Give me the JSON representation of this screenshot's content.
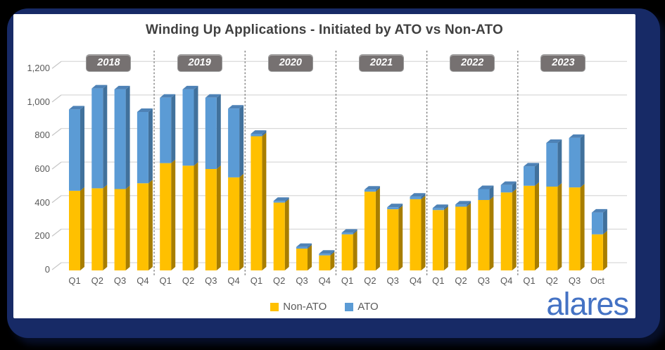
{
  "title": "Winding Up Applications - Initiated by ATO vs Non-ATO",
  "brand": {
    "logo_text": "alares",
    "logo_color": "#4472C4"
  },
  "legend": {
    "items": [
      {
        "label": "Non-ATO",
        "color": "#FFC000"
      },
      {
        "label": "ATO",
        "color": "#5B9BD5"
      }
    ]
  },
  "y_axis": {
    "min": 0,
    "max": 1200,
    "step": 200,
    "tick_labels": [
      "0",
      "200",
      "400",
      "600",
      "800",
      "1,000",
      "1,200"
    ]
  },
  "colors": {
    "non_ato_front": "#FFC000",
    "non_ato_side": "#A87E00",
    "ato_front": "#5B9BD5",
    "ato_side": "#41719C",
    "ato_top": "#4E82B6",
    "gridline": "#D9D9D9",
    "depth_tick": "#C6C6C6",
    "separator": "#6E6E6E",
    "chip_bg": "#767171",
    "chip_text": "#FFFFFF",
    "axis_text": "#595959",
    "title_text": "#404040",
    "card_bg": "#172A66",
    "page_bg": "#000000"
  },
  "chart_data": {
    "type": "bar",
    "stacked": true,
    "title": "Winding Up Applications - Initiated by ATO vs Non-ATO",
    "xlabel": "",
    "ylabel": "",
    "ylim": [
      0,
      1200
    ],
    "grid": true,
    "legend_position": "bottom",
    "categories": [
      "2018 Q1",
      "2018 Q2",
      "2018 Q3",
      "2018 Q4",
      "2019 Q1",
      "2019 Q2",
      "2019 Q3",
      "2019 Q4",
      "2020 Q1",
      "2020 Q2",
      "2020 Q3",
      "2020 Q4",
      "2021 Q1",
      "2021 Q2",
      "2021 Q3",
      "2021 Q4",
      "2022 Q1",
      "2022 Q2",
      "2022 Q3",
      "2022 Q4",
      "2023 Q1",
      "2023 Q2",
      "2023 Q3",
      "2023 Oct"
    ],
    "series": [
      {
        "name": "Non-ATO",
        "values": [
          475,
          490,
          485,
          520,
          640,
          625,
          605,
          555,
          800,
          405,
          130,
          90,
          215,
          470,
          365,
          425,
          360,
          380,
          420,
          465,
          505,
          500,
          495,
          215
        ]
      },
      {
        "name": "ATO",
        "values": [
          485,
          595,
          595,
          425,
          390,
          455,
          425,
          410,
          15,
          10,
          10,
          10,
          10,
          12,
          12,
          15,
          12,
          13,
          65,
          45,
          115,
          260,
          295,
          130
        ]
      }
    ],
    "groups": [
      {
        "year": "2018",
        "points": [
          {
            "label": "Q1",
            "non_ato": 475,
            "ato": 485
          },
          {
            "label": "Q2",
            "non_ato": 490,
            "ato": 595
          },
          {
            "label": "Q3",
            "non_ato": 485,
            "ato": 595
          },
          {
            "label": "Q4",
            "non_ato": 520,
            "ato": 425
          }
        ]
      },
      {
        "year": "2019",
        "points": [
          {
            "label": "Q1",
            "non_ato": 640,
            "ato": 390
          },
          {
            "label": "Q2",
            "non_ato": 625,
            "ato": 455
          },
          {
            "label": "Q3",
            "non_ato": 605,
            "ato": 425
          },
          {
            "label": "Q4",
            "non_ato": 555,
            "ato": 410
          }
        ]
      },
      {
        "year": "2020",
        "points": [
          {
            "label": "Q1",
            "non_ato": 800,
            "ato": 15
          },
          {
            "label": "Q2",
            "non_ato": 405,
            "ato": 10
          },
          {
            "label": "Q3",
            "non_ato": 130,
            "ato": 10
          },
          {
            "label": "Q4",
            "non_ato": 90,
            "ato": 10
          }
        ]
      },
      {
        "year": "2021",
        "points": [
          {
            "label": "Q1",
            "non_ato": 215,
            "ato": 10
          },
          {
            "label": "Q2",
            "non_ato": 470,
            "ato": 12
          },
          {
            "label": "Q3",
            "non_ato": 365,
            "ato": 12
          },
          {
            "label": "Q4",
            "non_ato": 425,
            "ato": 15
          }
        ]
      },
      {
        "year": "2022",
        "points": [
          {
            "label": "Q1",
            "non_ato": 360,
            "ato": 12
          },
          {
            "label": "Q2",
            "non_ato": 380,
            "ato": 13
          },
          {
            "label": "Q3",
            "non_ato": 420,
            "ato": 65
          },
          {
            "label": "Q4",
            "non_ato": 465,
            "ato": 45
          }
        ]
      },
      {
        "year": "2023",
        "points": [
          {
            "label": "Q1",
            "non_ato": 505,
            "ato": 115
          },
          {
            "label": "Q2",
            "non_ato": 500,
            "ato": 260
          },
          {
            "label": "Q3",
            "non_ato": 495,
            "ato": 295
          },
          {
            "label": "Oct",
            "non_ato": 215,
            "ato": 130
          }
        ]
      }
    ]
  }
}
